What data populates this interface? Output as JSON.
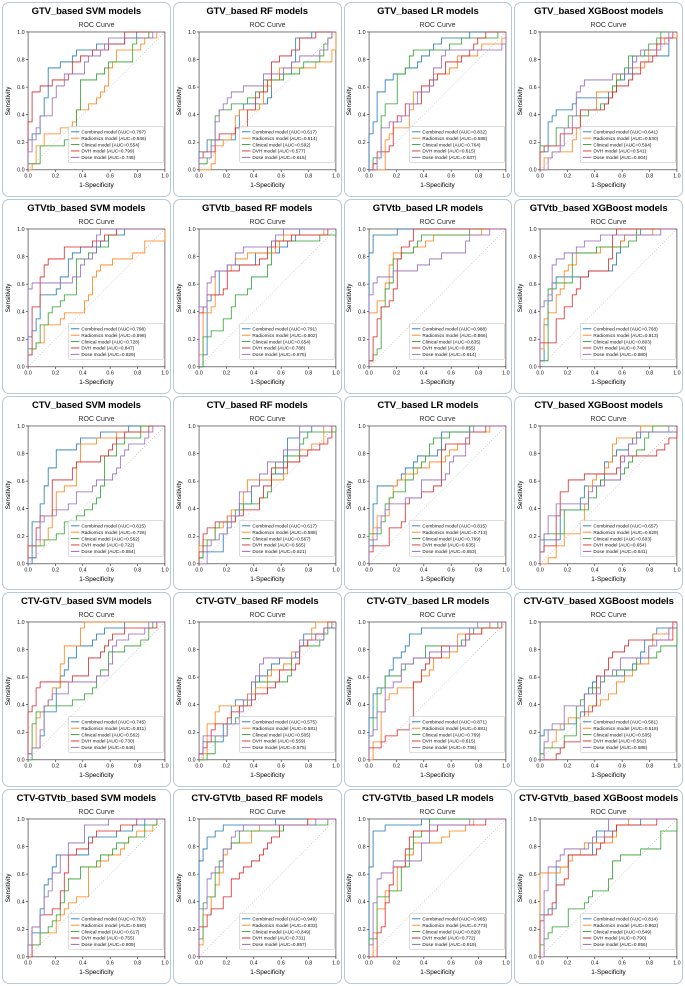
{
  "chart_defaults": {
    "type": "line",
    "inner_title": "ROC Curve",
    "xlabel": "1-Specificity",
    "ylabel": "Sensitivity",
    "xlim": [
      0,
      1
    ],
    "ylim": [
      0,
      1
    ],
    "x_ticks": [
      "0.0",
      "0.2",
      "0.4",
      "0.6",
      "0.8",
      "1.0"
    ],
    "y_ticks": [
      "0.0",
      "0.2",
      "0.4",
      "0.6",
      "0.8",
      "1.0"
    ],
    "grid": false,
    "diagonal_reference": true,
    "legend_position": "lower right",
    "legend_format": "%name% (AUC=%auc%)",
    "series_names": [
      "Combined model",
      "Radiomics model",
      "Clinical model",
      "DVH model",
      "Dose model"
    ],
    "series_colors": [
      "#1f77b4",
      "#ff7f0e",
      "#2ca02c",
      "#d62728",
      "#9467bd"
    ],
    "reference_color": "#888888",
    "panel_border_color": "#b7c8d8"
  },
  "chart_data": [
    {
      "type": "line",
      "title": "GTV_based SVM models",
      "auc": [
        "0.797",
        "0.546",
        "0.554",
        "0.799",
        "0.748"
      ]
    },
    {
      "type": "line",
      "title": "GTV_based RF models",
      "auc": [
        "0.617",
        "0.514",
        "0.592",
        "0.577",
        "0.615"
      ]
    },
    {
      "type": "line",
      "title": "GTV_based LR models",
      "auc": [
        "0.832",
        "0.588",
        "0.764",
        "0.615",
        "0.637"
      ]
    },
    {
      "type": "line",
      "title": "GTV_based XGBoost models",
      "auc": [
        "0.641",
        "0.530",
        "0.594",
        "0.541",
        "0.604"
      ]
    },
    {
      "type": "line",
      "title": "GTVtb_based SVM models",
      "auc": [
        "0.798",
        "0.598",
        "0.728",
        "0.847",
        "0.829"
      ]
    },
    {
      "type": "line",
      "title": "GTVtb_based RF models",
      "auc": [
        "0.791",
        "0.802",
        "0.654",
        "0.788",
        "0.875"
      ]
    },
    {
      "type": "line",
      "title": "GTVtb_based LR models",
      "auc": [
        "0.988",
        "0.866",
        "0.835",
        "0.855",
        "0.814"
      ]
    },
    {
      "type": "line",
      "title": "GTVtb_based XGBoost models",
      "auc": [
        "0.768",
        "0.813",
        "0.803",
        "0.740",
        "0.880"
      ]
    },
    {
      "type": "line",
      "title": "CTV_based SVM models",
      "auc": [
        "0.815",
        "0.726",
        "0.562",
        "0.722",
        "0.554"
      ]
    },
    {
      "type": "line",
      "title": "CTV_based RF models",
      "auc": [
        "0.617",
        "0.588",
        "0.567",
        "0.565",
        "0.621"
      ]
    },
    {
      "type": "line",
      "title": "CTV_based LR models",
      "auc": [
        "0.815",
        "0.713",
        "0.769",
        "0.635",
        "0.653"
      ]
    },
    {
      "type": "line",
      "title": "CTV_based XGBoost models",
      "auc": [
        "0.657",
        "0.629",
        "0.603",
        "0.654",
        "0.641"
      ]
    },
    {
      "type": "line",
      "title": "CTV-GTV_based SVM models",
      "auc": [
        "0.745",
        "0.811",
        "0.562",
        "0.730",
        "0.646"
      ]
    },
    {
      "type": "line",
      "title": "CTV-GTV_based RF models",
      "auc": [
        "0.575",
        "0.581",
        "0.505",
        "0.559",
        "0.575"
      ]
    },
    {
      "type": "line",
      "title": "CTV-GTV_based LR models",
      "auc": [
        "0.871",
        "0.681",
        "0.769",
        "0.615",
        "0.736"
      ]
    },
    {
      "type": "line",
      "title": "CTV-GTV_based XGBoost models",
      "auc": [
        "0.581",
        "0.518",
        "0.505",
        "0.562",
        "0.588"
      ]
    },
    {
      "type": "line",
      "title": "CTV-GTVtb_based SVM models",
      "auc": [
        "0.763",
        "0.580",
        "0.617",
        "0.755",
        "0.809"
      ]
    },
    {
      "type": "line",
      "title": "CTV-GTVtb_based RF models",
      "auc": [
        "0.949",
        "0.833",
        "0.849",
        "0.731",
        "0.857"
      ]
    },
    {
      "type": "line",
      "title": "CTV-GTVtb_based LR models",
      "auc": [
        "0.965",
        "0.773",
        "0.820",
        "0.772",
        "0.819"
      ]
    },
    {
      "type": "line",
      "title": "CTV-GTVtb_based XGBoost models",
      "auc": [
        "0.814",
        "0.862",
        "0.549",
        "0.790",
        "0.856"
      ]
    }
  ]
}
